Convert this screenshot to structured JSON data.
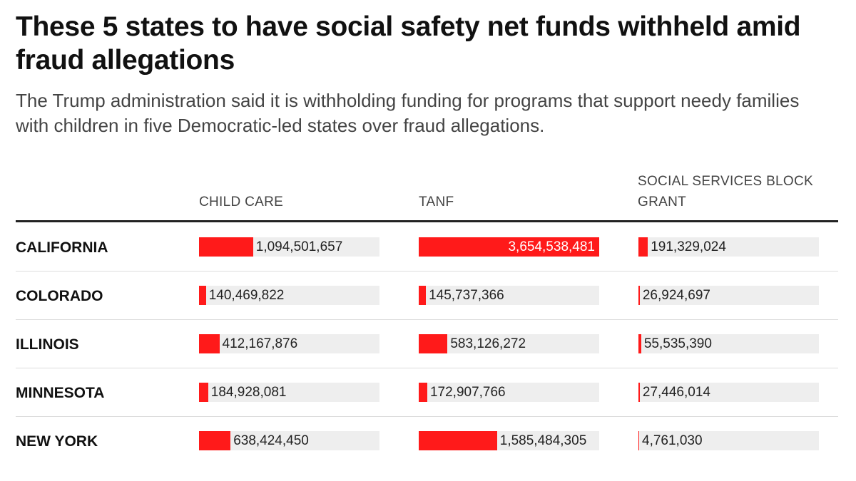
{
  "title": "These 5 states to have social safety net funds withheld amid fraud allegations",
  "subtitle": "The Trump administration said it is withholding funding for programs that support needy families with children in five Democratic-led states over fraud allegations.",
  "colors": {
    "bar": "#ff1a1a",
    "track": "#eeeeee"
  },
  "chart_data": {
    "type": "table",
    "columns": [
      "CHILD CARE",
      "TANF",
      "SOCIAL SERVICES BLOCK GRANT"
    ],
    "rows": [
      {
        "state": "CALIFORNIA",
        "values": [
          1094501657,
          3654538481,
          191329024
        ],
        "labels": [
          "1,094,501,657",
          "3,654,538,481",
          "191,329,024"
        ]
      },
      {
        "state": "COLORADO",
        "values": [
          140469822,
          145737366,
          26924697
        ],
        "labels": [
          "140,469,822",
          "145,737,366",
          "26,924,697"
        ]
      },
      {
        "state": "ILLINOIS",
        "values": [
          412167876,
          583126272,
          55535390
        ],
        "labels": [
          "412,167,876",
          "583,126,272",
          "55,535,390"
        ]
      },
      {
        "state": "MINNESOTA",
        "values": [
          184928081,
          172907766,
          27446014
        ],
        "labels": [
          "184,928,081",
          "172,907,766",
          "27,446,014"
        ]
      },
      {
        "state": "NEW YORK",
        "values": [
          638424450,
          1585484305,
          4761030
        ],
        "labels": [
          "638,424,450",
          "1,585,484,305",
          "4,761,030"
        ]
      }
    ]
  }
}
